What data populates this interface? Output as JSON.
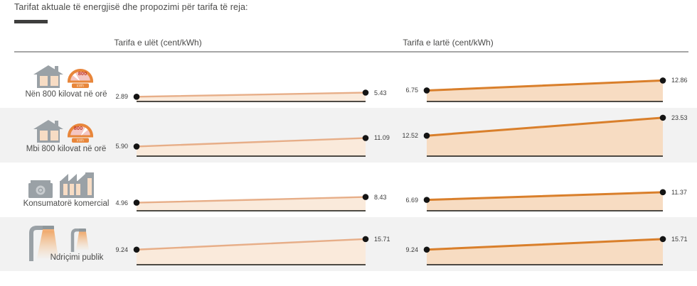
{
  "title": "Tarifat aktuale të energjisë dhe propozimi për tarifa të reja:",
  "chart_data": {
    "type": "slope",
    "unit": "cent/kWh",
    "columns": [
      {
        "label": "Tarifa e ulët (cent/kWh)"
      },
      {
        "label": "Tarifa e lartë (cent/kWh)"
      }
    ],
    "gauge": {
      "value": "800",
      "unit": "kWh"
    },
    "rows": [
      {
        "label": "Nën 800 kilovat në orë",
        "icons": [
          "house-icon",
          "gauge-under-800-icon"
        ],
        "low": {
          "from": "2.89",
          "to": "5.43"
        },
        "high": {
          "from": "6.75",
          "to": "12.86"
        }
      },
      {
        "label": "Mbi 800 kilovat në orë",
        "icons": [
          "house-icon",
          "gauge-over-800-icon"
        ],
        "low": {
          "from": "5.90",
          "to": "11.09"
        },
        "high": {
          "from": "12.52",
          "to": "23.53"
        }
      },
      {
        "label": "Konsumatorë komercial",
        "icons": [
          "cash-register-icon",
          "factory-icon"
        ],
        "low": {
          "from": "4.96",
          "to": "8.43"
        },
        "high": {
          "from": "6.69",
          "to": "11.37"
        }
      },
      {
        "label": "Ndriçimi publik",
        "icons": [
          "street-lamp-icon",
          "street-lamp-small-icon"
        ],
        "low": {
          "from": "9.24",
          "to": "15.71"
        },
        "high": {
          "from": "9.24",
          "to": "15.71"
        }
      }
    ],
    "colors": {
      "low": {
        "line": "#e7ae88",
        "fill": "#faeadb"
      },
      "high": {
        "line": "#d97f2b",
        "fill": "#f7dcc2"
      },
      "dot": "#141414",
      "baseline": "#35322d",
      "row_alt_bg": "#f2f2f2",
      "accent_orange": "#e8863a",
      "icon_gray": "#9aa1a6",
      "icon_peach": "#f7dcc4"
    },
    "ylim": [
      0,
      25
    ],
    "grid": false,
    "legend": "none"
  }
}
